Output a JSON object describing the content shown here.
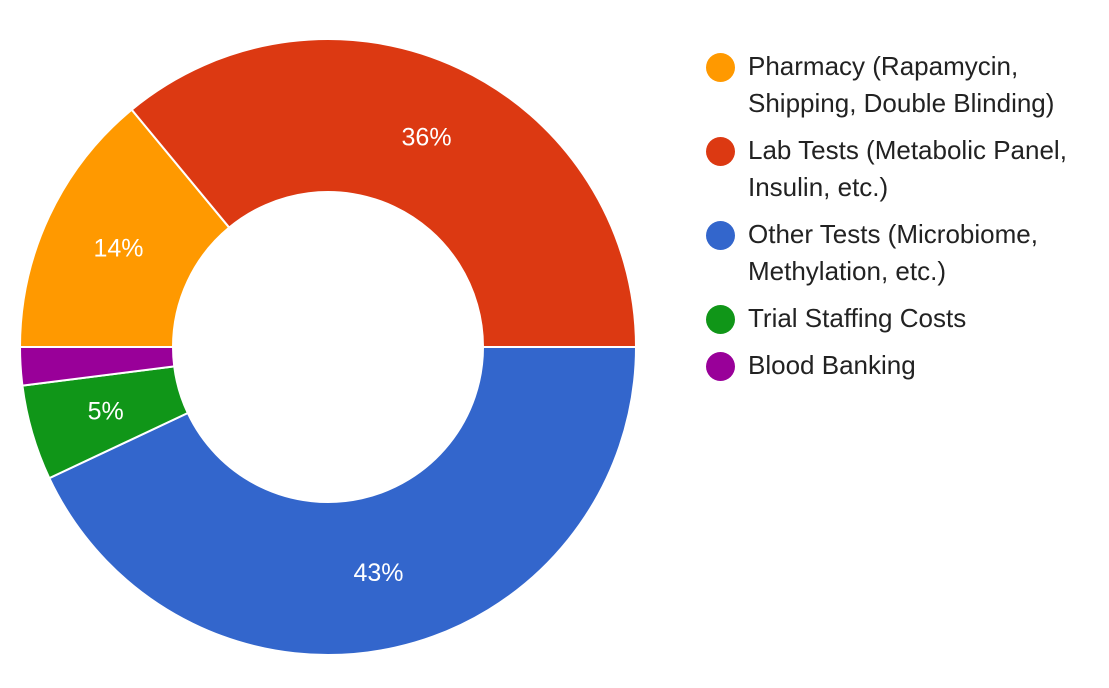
{
  "chart_data": {
    "type": "pie",
    "style": "donut",
    "title": "",
    "legend_position": "right",
    "series": [
      {
        "name": "Pharmacy (Rapamycin, Shipping, Double Blinding)",
        "value": 14,
        "label": "14%",
        "color": "#ff9900"
      },
      {
        "name": "Lab Tests (Metabolic Panel, Insulin, etc.)",
        "value": 36,
        "label": "36%",
        "color": "#dc3912"
      },
      {
        "name": "Other Tests (Microbiome, Methylation, etc.)",
        "value": 43,
        "label": "43%",
        "color": "#3366cc"
      },
      {
        "name": "Trial Staffing Costs",
        "value": 5,
        "label": "5%",
        "color": "#109618"
      },
      {
        "name": "Blood Banking",
        "value": 2,
        "label": "",
        "color": "#990099"
      }
    ],
    "draw_order": [
      2,
      3,
      4,
      0,
      1
    ]
  }
}
